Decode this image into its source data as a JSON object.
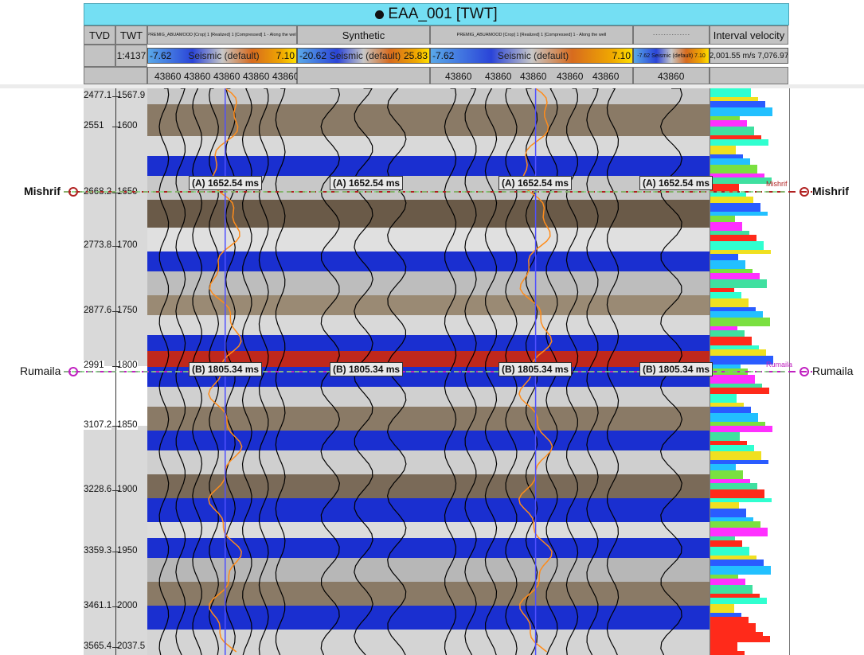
{
  "title": {
    "text": "EAA_001 [TWT]"
  },
  "columns": {
    "tvd": "TVD",
    "twt": "TWT",
    "scale": "1:4137",
    "track1_name": "PREMIG_ABUAMOOD [Crop] 1 [Realized] 1 [Compressed] 1 - Along the well",
    "synthetic_name": "Synthetic",
    "track3_name": "PREMIG_ABUAMOOD [Crop] 1 [Realized] 1 [Compressed] 1 - Along the well",
    "track4_name": "- - - - - - - - - - - - - -",
    "velocity_name": "Interval velocity"
  },
  "colorbars": {
    "track1": {
      "min": "-7.62",
      "label": "Seismic (default)",
      "max": "7.10"
    },
    "synthetic": {
      "min": "-20.62",
      "label": "Seismic (default)",
      "max": "25.83"
    },
    "track3": {
      "min": "-7.62",
      "label": "Seismic (default)",
      "max": "7.10"
    },
    "track4": {
      "text": "-7.62 Seismic (default) 7.10"
    },
    "velocity": {
      "text": "2,001.55 m/s 7,076.97"
    }
  },
  "trace_labels": {
    "track1": [
      "43860",
      "43860",
      "43860",
      "43860",
      "43860"
    ],
    "track3": [
      "43860",
      "43860",
      "43860",
      "43860",
      "43860"
    ],
    "track4": [
      "43860"
    ]
  },
  "depth_ticks": [
    {
      "tvd": "2477.1",
      "twt": "1567.9"
    },
    {
      "tvd": "2551",
      "twt": "1600"
    },
    {
      "tvd": "2668.2",
      "twt": "1650"
    },
    {
      "tvd": "2773.8",
      "twt": "1700"
    },
    {
      "tvd": "2877.6",
      "twt": "1750"
    },
    {
      "tvd": "2991",
      "twt": "1800"
    },
    {
      "tvd": "3107.2",
      "twt": "1850"
    },
    {
      "tvd": "3228.6",
      "twt": "1900"
    },
    {
      "tvd": "3359.3",
      "twt": "1950"
    },
    {
      "tvd": "3461.1",
      "twt": "2000"
    },
    {
      "tvd": "3565.4",
      "twt": "2037.5"
    }
  ],
  "horizons": {
    "mishrif": {
      "name": "Mishrif",
      "tag": "(A) 1652.54 ms",
      "color": "#b02020",
      "small": "Mishrif"
    },
    "rumaila": {
      "name": "Rumaila",
      "tag": "(B) 1805.34 ms",
      "color": "#c020c0",
      "small": "Rumaila"
    }
  },
  "colors": {
    "title_bg": "#74dff3",
    "header_bg": "#c3c3c3",
    "band_blue": "#1a2fd0",
    "band_red": "#c0281c"
  }
}
